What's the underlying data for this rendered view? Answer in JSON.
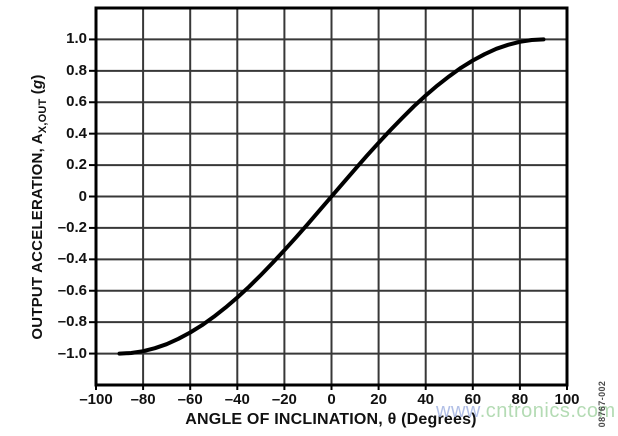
{
  "figure": {
    "fig_code": "08767-002",
    "watermark": {
      "part_blue": "www",
      "part_green": ".cntronics.com"
    }
  },
  "axes": {
    "y_title": {
      "main": "OUTPUT ACCELERATION, A",
      "sub": "X,OUT",
      "unit_open": " (",
      "unit_g": "g",
      "unit_close": ")"
    },
    "x_title": "ANGLE OF INCLINATION, θ (Degrees)"
  },
  "colors": {
    "curve": "#000000",
    "frame": "#000000",
    "grid": "#383838",
    "text": "#111111",
    "fig_code": "#4d4d4d",
    "watermark_blue": "#a4b4e2",
    "watermark_green": "#a7d5a7",
    "background": "#ffffff"
  },
  "chart_data": {
    "type": "line",
    "title": "",
    "xlabel": "ANGLE OF INCLINATION, θ (Degrees)",
    "ylabel": "OUTPUT ACCELERATION, AX,OUT (g)",
    "xlim": [
      -100,
      100
    ],
    "ylim": [
      -1.2,
      1.2
    ],
    "grid": true,
    "legend": false,
    "x_ticks": {
      "values": [
        -100,
        -80,
        -60,
        -40,
        -20,
        0,
        20,
        40,
        60,
        80,
        100
      ],
      "labels": [
        "–100",
        "–80",
        "–60",
        "–40",
        "–20",
        "0",
        "20",
        "40",
        "60",
        "80",
        "100"
      ]
    },
    "y_ticks": {
      "values": [
        1.0,
        0.8,
        0.6,
        0.4,
        0.2,
        0,
        -0.2,
        -0.4,
        -0.6,
        -0.8,
        -1.0
      ],
      "labels": [
        "1.0",
        "0.8",
        "0.6",
        "0.4",
        "0.2",
        "0",
        "–0.2",
        "–0.4",
        "–0.6",
        "–0.8",
        "–1.0"
      ]
    },
    "series": [
      {
        "name": "output-acceleration-vs-angle",
        "x": [
          -90,
          -85,
          -80,
          -75,
          -70,
          -65,
          -60,
          -55,
          -50,
          -45,
          -40,
          -35,
          -30,
          -25,
          -20,
          -15,
          -10,
          -5,
          0,
          5,
          10,
          15,
          20,
          25,
          30,
          35,
          40,
          45,
          50,
          55,
          60,
          65,
          70,
          75,
          80,
          85,
          90
        ],
        "y": [
          -1.0,
          -0.996,
          -0.985,
          -0.966,
          -0.94,
          -0.906,
          -0.866,
          -0.819,
          -0.766,
          -0.707,
          -0.643,
          -0.574,
          -0.5,
          -0.423,
          -0.342,
          -0.259,
          -0.174,
          -0.087,
          0.0,
          0.087,
          0.174,
          0.259,
          0.342,
          0.423,
          0.5,
          0.574,
          0.643,
          0.707,
          0.766,
          0.819,
          0.866,
          0.906,
          0.94,
          0.966,
          0.985,
          0.996,
          1.0
        ]
      }
    ]
  }
}
